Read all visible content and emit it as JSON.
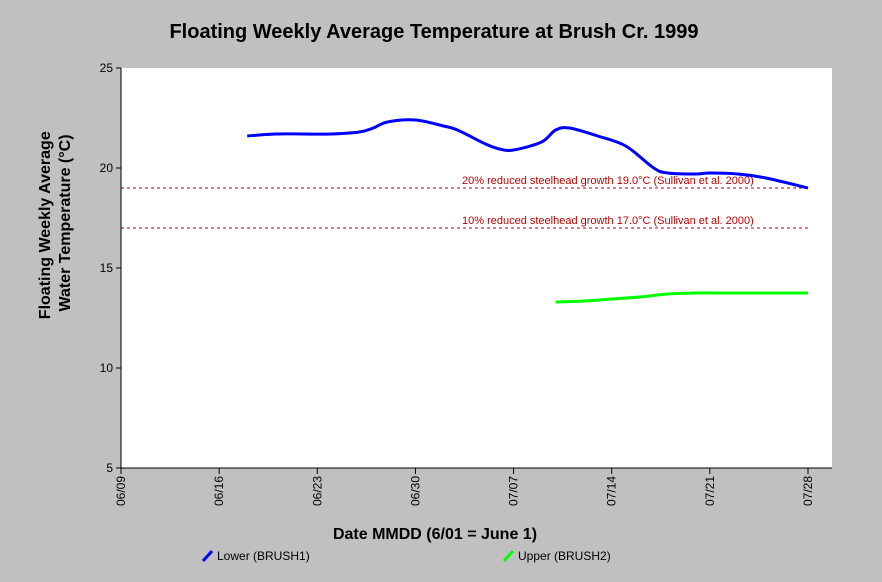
{
  "chart_data": {
    "type": "line",
    "title": "Floating Weekly Average Temperature at Brush Cr. 1999",
    "xlabel": "Date MMDD (6/01 = June 1)",
    "ylabel_line1": "Floating Weekly Average",
    "ylabel_line2": "Water Temperature (°C)",
    "ylim": [
      5,
      25
    ],
    "yticks": [
      5,
      10,
      15,
      20,
      25
    ],
    "xlim": [
      "1999-06-09",
      "1999-07-28"
    ],
    "xticks": [
      "06/09",
      "06/16",
      "06/23",
      "06/30",
      "07/07",
      "07/14",
      "07/21",
      "07/28"
    ],
    "grid": false,
    "legend_position": "bottom",
    "series": [
      {
        "name": "Lower (BRUSH1)",
        "color": "#0000ff",
        "points": [
          [
            "1999-06-18",
            21.6
          ],
          [
            "1999-06-20",
            21.7
          ],
          [
            "1999-06-22",
            21.7
          ],
          [
            "1999-06-24",
            21.7
          ],
          [
            "1999-06-26",
            21.8
          ],
          [
            "1999-06-27",
            22.0
          ],
          [
            "1999-06-28",
            22.3
          ],
          [
            "1999-06-30",
            22.4
          ],
          [
            "1999-07-02",
            22.1
          ],
          [
            "1999-07-03",
            21.9
          ],
          [
            "1999-07-05",
            21.2
          ],
          [
            "1999-07-06",
            20.95
          ],
          [
            "1999-07-07",
            20.9
          ],
          [
            "1999-07-09",
            21.3
          ],
          [
            "1999-07-10",
            21.9
          ],
          [
            "1999-07-11",
            22.0
          ],
          [
            "1999-07-13",
            21.6
          ],
          [
            "1999-07-15",
            21.1
          ],
          [
            "1999-07-17",
            20.0
          ],
          [
            "1999-07-18",
            19.75
          ],
          [
            "1999-07-20",
            19.7
          ],
          [
            "1999-07-21",
            19.75
          ],
          [
            "1999-07-23",
            19.7
          ],
          [
            "1999-07-25",
            19.5
          ],
          [
            "1999-07-28",
            19.0
          ]
        ]
      },
      {
        "name": "Upper (BRUSH2)",
        "color": "#00ff00",
        "points": [
          [
            "1999-07-10",
            13.3
          ],
          [
            "1999-07-12",
            13.35
          ],
          [
            "1999-07-14",
            13.45
          ],
          [
            "1999-07-16",
            13.55
          ],
          [
            "1999-07-18",
            13.7
          ],
          [
            "1999-07-20",
            13.75
          ],
          [
            "1999-07-22",
            13.75
          ],
          [
            "1999-07-24",
            13.75
          ],
          [
            "1999-07-26",
            13.75
          ],
          [
            "1999-07-28",
            13.75
          ]
        ]
      }
    ],
    "reference_lines": [
      {
        "y": 19.0,
        "label": "20% reduced steelhead growth 19.0°C (Sullivan et al. 2000)",
        "color": "#c00000"
      },
      {
        "y": 17.0,
        "label": "10% reduced steelhead growth 17.0°C (Sullivan et al. 2000)",
        "color": "#c00000"
      }
    ]
  }
}
